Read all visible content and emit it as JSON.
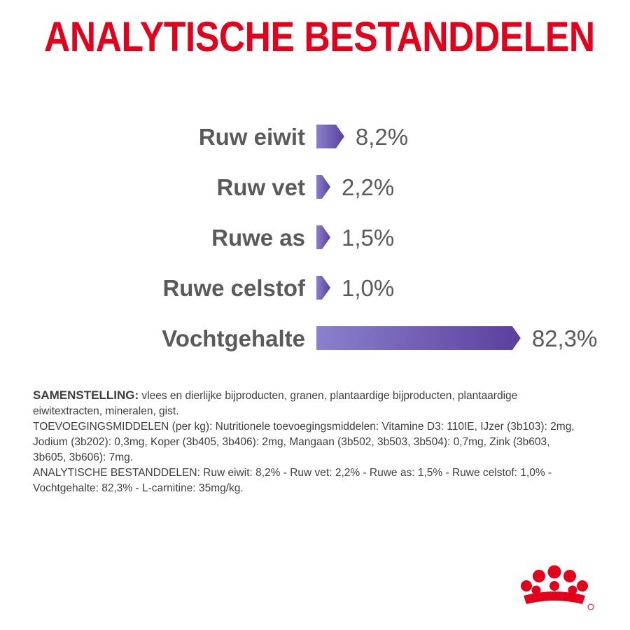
{
  "title": "ANALYTISCHE BESTANDDELEN",
  "chart_data": {
    "type": "bar",
    "orientation": "horizontal",
    "categories": [
      "Ruw eiwit",
      "Ruw vet",
      "Ruwe as",
      "Ruwe celstof",
      "Vochtgehalte"
    ],
    "values": [
      8.2,
      2.2,
      1.5,
      1.0,
      82.3
    ],
    "value_labels": [
      "8,2%",
      "2,2%",
      "1,5%",
      "1,0%",
      "82,3%"
    ],
    "unit": "%",
    "xlim": [
      0,
      100
    ],
    "grid": false,
    "legend": "none",
    "colors": {
      "bar_start": "#8a80cc",
      "bar_end": "#5b3f9e",
      "label": "#5a5a5a"
    }
  },
  "composition": {
    "heading": "SAMENSTELLING:",
    "text": "vlees en dierlijke bijproducten, granen, plantaardige bijproducten, plantaardige eiwitextracten, mineralen, gist.",
    "additives": "TOEVOEGINGSMIDDELEN (per kg): Nutritionele toevoegingsmiddelen: Vitamine D3: 110IE, IJzer (3b103): 2mg, Jodium (3b202): 0,3mg, Koper (3b405, 3b406): 2mg, Mangaan (3b502, 3b503, 3b504): 0,7mg, Zink (3b603, 3b605, 3b606): 7mg.",
    "analytical": "ANALYTISCHE BESTANDDELEN: Ruw eiwit: 8,2% - Ruw vet: 2,2% - Ruwe as: 1,5% - Ruwe celstof: 1,0% - Vochtgehalte: 82,3% - L-carnitine: 35mg/kg."
  },
  "brand": {
    "logo": "royal-canin-crown-logo",
    "color": "#e2001a"
  }
}
